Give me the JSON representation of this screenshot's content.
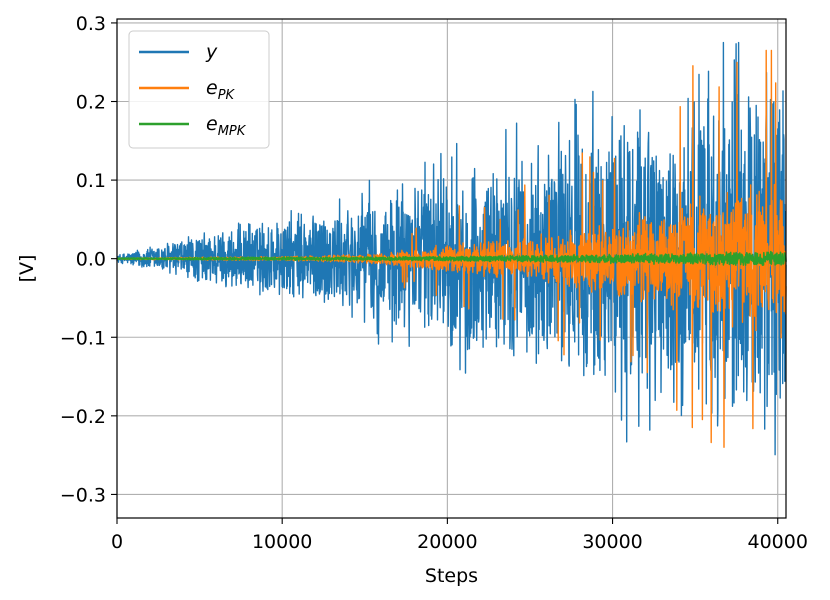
{
  "chart_data": {
    "type": "line",
    "title": "",
    "xlabel": "Steps",
    "ylabel": "[V]",
    "xlim": [
      0,
      40500
    ],
    "ylim": [
      -0.33,
      0.305
    ],
    "x_ticks": [
      0,
      10000,
      20000,
      30000,
      40000
    ],
    "x_tick_labels": [
      "0",
      "10000",
      "20000",
      "30000",
      "40000"
    ],
    "y_ticks": [
      -0.3,
      -0.2,
      -0.1,
      0.0,
      0.1,
      0.2,
      0.3
    ],
    "y_tick_labels": [
      "−0.3",
      "−0.2",
      "−0.1",
      "0.0",
      "0.1",
      "0.2",
      "0.3"
    ],
    "grid": true,
    "legend_position": "top-left",
    "series": [
      {
        "name": "y",
        "label_main": "y",
        "label_sub": "",
        "color": "#1f77b4",
        "description": "oscillating signal whose envelope grows with steps",
        "envelope_x": [
          0,
          5000,
          10000,
          15000,
          20000,
          25000,
          30000,
          35000,
          40500
        ],
        "envelope_amplitude": [
          0.005,
          0.035,
          0.06,
          0.085,
          0.12,
          0.15,
          0.19,
          0.22,
          0.26
        ],
        "peak_max": 0.275,
        "peak_min": -0.303
      },
      {
        "name": "e_PK",
        "label_main": "e",
        "label_sub": "PK",
        "color": "#ff7f0e",
        "description": "error signal, small until ~17000 steps, then growing with spikes",
        "envelope_x": [
          0,
          10000,
          15000,
          20000,
          25000,
          30000,
          35000,
          40500
        ],
        "envelope_amplitude": [
          0.001,
          0.003,
          0.006,
          0.02,
          0.03,
          0.05,
          0.08,
          0.11
        ],
        "peak_max": 0.265,
        "peak_min": -0.24
      },
      {
        "name": "e_MPK",
        "label_main": "e",
        "label_sub": "MPK",
        "color": "#2ca02c",
        "description": "error signal that stays near zero",
        "envelope_x": [
          0,
          20000,
          40500
        ],
        "envelope_amplitude": [
          0.001,
          0.003,
          0.01
        ],
        "peak_max": 0.015,
        "peak_min": -0.015
      }
    ]
  }
}
